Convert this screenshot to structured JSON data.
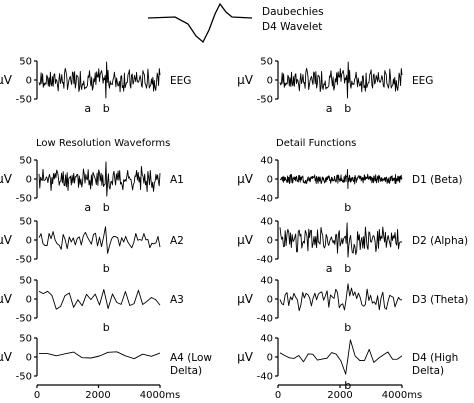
{
  "wavelet": {
    "name_line1": "Daubechies",
    "name_line2": "D4 Wavelet"
  },
  "headers": {
    "left": "Low Resolution Waveforms",
    "right": "Detail Functions"
  },
  "x_axis": {
    "ticks": [
      "0",
      "2000",
      "4000ms"
    ],
    "range_ms": [
      0,
      4000
    ]
  },
  "chart_data": [
    {
      "type": "line",
      "id": "eeg-left",
      "ylabel": "μV",
      "yticks": [
        "50",
        "0",
        "-50"
      ],
      "ylim": [
        -50,
        50
      ],
      "label_lines": [
        "EEG"
      ],
      "markers": [
        {
          "text": "a",
          "x_ms": 1650
        },
        {
          "text": "b",
          "x_ms": 2250
        }
      ]
    },
    {
      "type": "line",
      "id": "eeg-right",
      "ylabel": "μV",
      "yticks": [
        "50",
        "0",
        "-50"
      ],
      "ylim": [
        -50,
        50
      ],
      "label_lines": [
        "EEG"
      ],
      "markers": [
        {
          "text": "a",
          "x_ms": 1650
        },
        {
          "text": "b",
          "x_ms": 2250
        }
      ]
    },
    {
      "type": "line",
      "id": "a1",
      "ylabel": "μV",
      "yticks": [
        "50",
        "0",
        "-50"
      ],
      "ylim": [
        -50,
        50
      ],
      "label_lines": [
        "A1"
      ],
      "markers": [
        {
          "text": "a",
          "x_ms": 1650
        },
        {
          "text": "b",
          "x_ms": 2250
        }
      ]
    },
    {
      "type": "line",
      "id": "d1",
      "ylabel": "μV",
      "yticks": [
        "40",
        "0",
        "-40"
      ],
      "ylim": [
        -40,
        40
      ],
      "label_lines": [
        "D1 (Beta)"
      ],
      "markers": [
        {
          "text": "b",
          "x_ms": 2250
        }
      ]
    },
    {
      "type": "line",
      "id": "a2",
      "ylabel": "μV",
      "yticks": [
        "50",
        "0",
        "-50"
      ],
      "ylim": [
        -50,
        50
      ],
      "label_lines": [
        "A2"
      ],
      "markers": [
        {
          "text": "b",
          "x_ms": 2250
        }
      ]
    },
    {
      "type": "line",
      "id": "d2",
      "ylabel": "μV",
      "yticks": [
        "40",
        "0",
        "-40"
      ],
      "ylim": [
        -40,
        40
      ],
      "label_lines": [
        "D2 (Alpha)"
      ],
      "markers": [
        {
          "text": "a",
          "x_ms": 1650
        },
        {
          "text": "b",
          "x_ms": 2250
        }
      ]
    },
    {
      "type": "line",
      "id": "a3",
      "ylabel": "μV",
      "yticks": [
        "50",
        "0",
        "-50"
      ],
      "ylim": [
        -50,
        50
      ],
      "label_lines": [
        "A3"
      ],
      "markers": [
        {
          "text": "b",
          "x_ms": 2250
        }
      ]
    },
    {
      "type": "line",
      "id": "d3",
      "ylabel": "μV",
      "yticks": [
        "40",
        "0",
        "-40"
      ],
      "ylim": [
        -40,
        40
      ],
      "label_lines": [
        "D3 (Theta)"
      ],
      "markers": [
        {
          "text": "b",
          "x_ms": 2250
        }
      ]
    },
    {
      "type": "line",
      "id": "a4",
      "ylabel": "μV",
      "yticks": [
        "50",
        "0",
        "-50"
      ],
      "ylim": [
        -50,
        50
      ],
      "label_lines": [
        "A4 (Low",
        "Delta)"
      ],
      "markers": []
    },
    {
      "type": "line",
      "id": "d4",
      "ylabel": "μV",
      "yticks": [
        "40",
        "0",
        "-40"
      ],
      "ylim": [
        -40,
        40
      ],
      "label_lines": [
        "D4 (High",
        "Delta)"
      ],
      "markers": [
        {
          "text": "b",
          "x_ms": 2250
        }
      ]
    }
  ]
}
